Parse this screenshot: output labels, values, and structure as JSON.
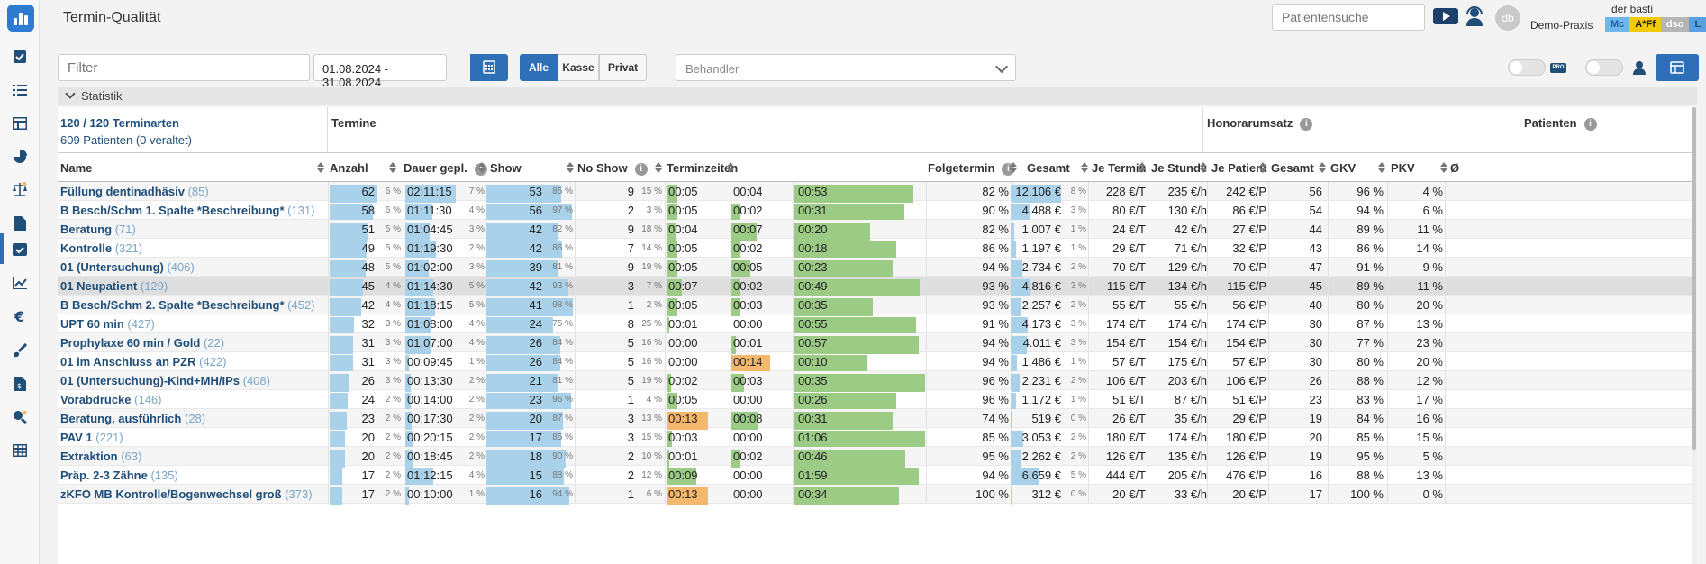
{
  "app": {
    "title": "Termin-Qualität"
  },
  "header": {
    "search_placeholder": "Patientensuche",
    "user_name": "der basti",
    "practice": "Demo-Praxis",
    "avatar": "db",
    "badges": [
      {
        "label": "Mc",
        "color": "#1f5fa8",
        "bg": "#6eb7ea"
      },
      {
        "label": "A*Ff",
        "color": "#1a1a1a",
        "bg": "#f2cb05"
      },
      {
        "label": "dso",
        "color": "#ffffff",
        "bg": "#b5b5b5"
      },
      {
        "label": "L",
        "color": "#1f4e79",
        "bg": "#5aa1e3"
      }
    ]
  },
  "toolbar": {
    "filter_placeholder": "Filter",
    "date_range": "01.08.2024 - 31.08.2024",
    "segments": [
      "Alle",
      "Kasse",
      "Privat"
    ],
    "active_segment": "Alle",
    "behandler_placeholder": "Behandler",
    "toggle1_label": "PRO"
  },
  "statistik": {
    "label": "Statistik"
  },
  "groups": {
    "summary_line1": "120 / 120 Terminarten",
    "summary_line2": "609 Patienten (0 veraltet)",
    "termine": "Termine",
    "honorar": "Honorarumsatz",
    "patienten": "Patienten"
  },
  "columns": {
    "name": "Name",
    "anzahl": "Anzahl",
    "dauer": "Dauer gepl.",
    "show": "Show",
    "noshow": "No Show",
    "terminzeiten": "Terminzeiten",
    "folgetermin": "Folgetermin",
    "gesamt": "Gesamt",
    "je_termin": "Je Termin",
    "je_stunde": "Je Stunde",
    "je_patient": "Je Patient",
    "pat_gesamt": "Gesamt",
    "gkv": "GKV",
    "pkv": "PKV",
    "overflow": "Ø"
  },
  "rows": [
    {
      "name": "Füllung dentinadhäsiv",
      "count": "(85)",
      "anzahl": "62",
      "anzahl_pct": "6 %",
      "dauer": "02:11:15",
      "dauer_pct": "7 %",
      "show": "53",
      "show_pct": "85 %",
      "noshow": "9",
      "noshow_pct": "15 %",
      "t1": "00:05",
      "t2": "00:04",
      "t3": "00:53",
      "folge": "82 %",
      "gesamt": "12.106 €",
      "gesamt_pct": "8 %",
      "je_termin": "228 €/T",
      "je_stunde": "235 €/h",
      "je_patient": "242 €/P",
      "pat": "56",
      "gkv": "96 %",
      "pkv": "4 %",
      "t1_fill": 0.27,
      "t2_fill": 0,
      "t3_fill": 0.91,
      "t1_c": "g",
      "t2_c": "g",
      "t3_c": "g",
      "anz_fill": 1.0,
      "dauer_fill": 1.0,
      "show_fill": 0.85,
      "gesamt_fill": 1.0
    },
    {
      "name": "B Besch/Schm 1. Spalte *Beschreibung*",
      "count": "(131)",
      "anzahl": "58",
      "anzahl_pct": "6 %",
      "dauer": "01:11:30",
      "dauer_pct": "4 %",
      "show": "56",
      "show_pct": "97 %",
      "noshow": "2",
      "noshow_pct": "3 %",
      "t1": "00:05",
      "t2": "00:02",
      "t3": "00:31",
      "folge": "90 %",
      "gesamt": "4.488 €",
      "gesamt_pct": "3 %",
      "je_termin": "80 €/T",
      "je_stunde": "130 €/h",
      "je_patient": "86 €/P",
      "pat": "54",
      "gkv": "94 %",
      "pkv": "6 %",
      "t1_fill": 0.27,
      "t2_fill": 0.2,
      "t3_fill": 0.84,
      "t1_c": "g",
      "t2_c": "g",
      "t3_c": "g",
      "anz_fill": 0.93,
      "dauer_fill": 0.54,
      "show_fill": 0.97,
      "gesamt_fill": 0.37
    },
    {
      "name": "Beratung",
      "count": "(71)",
      "anzahl": "51",
      "anzahl_pct": "5 %",
      "dauer": "01:04:45",
      "dauer_pct": "3 %",
      "show": "42",
      "show_pct": "82 %",
      "noshow": "9",
      "noshow_pct": "18 %",
      "t1": "00:04",
      "t2": "00:07",
      "t3": "00:20",
      "folge": "82 %",
      "gesamt": "1.007 €",
      "gesamt_pct": "1 %",
      "je_termin": "24 €/T",
      "je_stunde": "42 €/h",
      "je_patient": "27 €/P",
      "pat": "44",
      "gkv": "89 %",
      "pkv": "11 %",
      "t1_fill": 0.22,
      "t2_fill": 0.53,
      "t3_fill": 0.58,
      "t1_c": "g",
      "t2_c": "g",
      "t3_c": "g",
      "anz_fill": 0.82,
      "dauer_fill": 0.49,
      "show_fill": 0.82,
      "gesamt_fill": 0.08
    },
    {
      "name": "Kontrolle",
      "count": "(321)",
      "anzahl": "49",
      "anzahl_pct": "5 %",
      "dauer": "01:19:30",
      "dauer_pct": "2 %",
      "show": "42",
      "show_pct": "86 %",
      "noshow": "7",
      "noshow_pct": "14 %",
      "t1": "00:05",
      "t2": "00:02",
      "t3": "00:18",
      "folge": "86 %",
      "gesamt": "1.197 €",
      "gesamt_pct": "1 %",
      "je_termin": "29 €/T",
      "je_stunde": "71 €/h",
      "je_patient": "32 €/P",
      "pat": "43",
      "gkv": "86 %",
      "pkv": "14 %",
      "t1_fill": 0.27,
      "t2_fill": 0.2,
      "t3_fill": 0.78,
      "t1_c": "g",
      "t2_c": "g",
      "t3_c": "g",
      "anz_fill": 0.79,
      "dauer_fill": 0.6,
      "show_fill": 0.86,
      "gesamt_fill": 0.1
    },
    {
      "name": "01 (Untersuchung)",
      "count": "(406)",
      "anzahl": "48",
      "anzahl_pct": "5 %",
      "dauer": "01:02:00",
      "dauer_pct": "3 %",
      "show": "39",
      "show_pct": "81 %",
      "noshow": "9",
      "noshow_pct": "19 %",
      "t1": "00:05",
      "t2": "00:05",
      "t3": "00:23",
      "folge": "94 %",
      "gesamt": "2.734 €",
      "gesamt_pct": "2 %",
      "je_termin": "70 €/T",
      "je_stunde": "129 €/h",
      "je_patient": "70 €/P",
      "pat": "47",
      "gkv": "91 %",
      "pkv": "9 %",
      "t1_fill": 0.27,
      "t2_fill": 0.4,
      "t3_fill": 0.75,
      "t1_c": "g",
      "t2_c": "g",
      "t3_c": "g",
      "anz_fill": 0.77,
      "dauer_fill": 0.47,
      "show_fill": 0.81,
      "gesamt_fill": 0.23
    },
    {
      "name": "01 Neupatient",
      "count": "(129)",
      "anzahl": "45",
      "anzahl_pct": "4 %",
      "dauer": "01:14:30",
      "dauer_pct": "5 %",
      "show": "42",
      "show_pct": "93 %",
      "noshow": "3",
      "noshow_pct": "7 %",
      "t1": "00:07",
      "t2": "00:02",
      "t3": "00:49",
      "folge": "93 %",
      "gesamt": "4.816 €",
      "gesamt_pct": "3 %",
      "je_termin": "115 €/T",
      "je_stunde": "134 €/h",
      "je_patient": "115 €/P",
      "pat": "45",
      "gkv": "89 %",
      "pkv": "11 %",
      "t1_fill": 0.38,
      "t2_fill": 0.2,
      "t3_fill": 0.96,
      "t1_c": "g",
      "t2_c": "g",
      "t3_c": "g",
      "anz_fill": 0.72,
      "dauer_fill": 0.56,
      "show_fill": 0.93,
      "gesamt_fill": 0.4,
      "hl": true
    },
    {
      "name": "B Besch/Schm 2. Spalte *Beschreibung*",
      "count": "(452)",
      "anzahl": "42",
      "anzahl_pct": "4 %",
      "dauer": "01:18:15",
      "dauer_pct": "5 %",
      "show": "41",
      "show_pct": "98 %",
      "noshow": "1",
      "noshow_pct": "2 %",
      "t1": "00:05",
      "t2": "00:03",
      "t3": "00:35",
      "folge": "93 %",
      "gesamt": "2.257 €",
      "gesamt_pct": "2 %",
      "je_termin": "55 €/T",
      "je_stunde": "55 €/h",
      "je_patient": "56 €/P",
      "pat": "40",
      "gkv": "80 %",
      "pkv": "20 %",
      "t1_fill": 0.27,
      "t2_fill": 0.2,
      "t3_fill": 0.6,
      "t1_c": "g",
      "t2_c": "g",
      "t3_c": "g",
      "anz_fill": 0.68,
      "dauer_fill": 0.59,
      "show_fill": 0.98,
      "gesamt_fill": 0.19
    },
    {
      "name": "UPT 60 min",
      "count": "(427)",
      "anzahl": "32",
      "anzahl_pct": "3 %",
      "dauer": "01:08:00",
      "dauer_pct": "4 %",
      "show": "24",
      "show_pct": "75 %",
      "noshow": "8",
      "noshow_pct": "25 %",
      "t1": "00:01",
      "t2": "00:00",
      "t3": "00:55",
      "folge": "91 %",
      "gesamt": "4.173 €",
      "gesamt_pct": "3 %",
      "je_termin": "174 €/T",
      "je_stunde": "174 €/h",
      "je_patient": "174 €/P",
      "pat": "30",
      "gkv": "87 %",
      "pkv": "13 %",
      "t1_fill": 0.07,
      "t2_fill": 0,
      "t3_fill": 0.93,
      "t1_c": "g",
      "t2_c": "g",
      "t3_c": "g",
      "anz_fill": 0.52,
      "dauer_fill": 0.52,
      "show_fill": 0.75,
      "gesamt_fill": 0.34
    },
    {
      "name": "Prophylaxe 60 min / Gold",
      "count": "(22)",
      "anzahl": "31",
      "anzahl_pct": "3 %",
      "dauer": "01:07:00",
      "dauer_pct": "4 %",
      "show": "26",
      "show_pct": "84 %",
      "noshow": "5",
      "noshow_pct": "16 %",
      "t1": "00:00",
      "t2": "00:01",
      "t3": "00:57",
      "folge": "94 %",
      "gesamt": "4.011 €",
      "gesamt_pct": "3 %",
      "je_termin": "154 €/T",
      "je_stunde": "154 €/h",
      "je_patient": "154 €/P",
      "pat": "30",
      "gkv": "77 %",
      "pkv": "23 %",
      "t1_fill": 0.02,
      "t2_fill": 0.1,
      "t3_fill": 0.95,
      "t1_c": "g",
      "t2_c": "g",
      "t3_c": "g",
      "anz_fill": 0.5,
      "dauer_fill": 0.51,
      "show_fill": 0.84,
      "gesamt_fill": 0.33
    },
    {
      "name": "01 im Anschluss an PZR",
      "count": "(422)",
      "anzahl": "31",
      "anzahl_pct": "3 %",
      "dauer": "00:09:45",
      "dauer_pct": "1 %",
      "show": "26",
      "show_pct": "84 %",
      "noshow": "5",
      "noshow_pct": "16 %",
      "t1": "00:00",
      "t2": "00:14",
      "t3": "00:10",
      "folge": "94 %",
      "gesamt": "1.486 €",
      "gesamt_pct": "1 %",
      "je_termin": "57 €/T",
      "je_stunde": "175 €/h",
      "je_patient": "57 €/P",
      "pat": "30",
      "gkv": "80 %",
      "pkv": "20 %",
      "t1_fill": 0.02,
      "t2_fill": 0.82,
      "t3_fill": 0.55,
      "t1_c": "g",
      "t2_c": "o",
      "t3_c": "g",
      "anz_fill": 0.5,
      "dauer_fill": 0.07,
      "show_fill": 0.84,
      "gesamt_fill": 0.12
    },
    {
      "name": "01 (Untersuchung)-Kind+MH/IPs",
      "count": "(408)",
      "anzahl": "26",
      "anzahl_pct": "3 %",
      "dauer": "00:13:30",
      "dauer_pct": "2 %",
      "show": "21",
      "show_pct": "81 %",
      "noshow": "5",
      "noshow_pct": "19 %",
      "t1": "00:02",
      "t2": "00:03",
      "t3": "00:35",
      "folge": "96 %",
      "gesamt": "2.231 €",
      "gesamt_pct": "2 %",
      "je_termin": "106 €/T",
      "je_stunde": "203 €/h",
      "je_patient": "106 €/P",
      "pat": "26",
      "gkv": "88 %",
      "pkv": "12 %",
      "t1_fill": 0.1,
      "t2_fill": 0.27,
      "t3_fill": 1.0,
      "t1_c": "g",
      "t2_c": "g",
      "t3_c": "g",
      "anz_fill": 0.42,
      "dauer_fill": 0.1,
      "show_fill": 0.81,
      "gesamt_fill": 0.18
    },
    {
      "name": "Vorabdrücke",
      "count": "(146)",
      "anzahl": "24",
      "anzahl_pct": "2 %",
      "dauer": "00:14:00",
      "dauer_pct": "2 %",
      "show": "23",
      "show_pct": "96 %",
      "noshow": "1",
      "noshow_pct": "4 %",
      "t1": "00:05",
      "t2": "00:00",
      "t3": "00:26",
      "folge": "96 %",
      "gesamt": "1.172 €",
      "gesamt_pct": "1 %",
      "je_termin": "51 €/T",
      "je_stunde": "87 €/h",
      "je_patient": "51 €/P",
      "pat": "23",
      "gkv": "83 %",
      "pkv": "17 %",
      "t1_fill": 0.27,
      "t2_fill": 0,
      "t3_fill": 0.78,
      "t1_c": "g",
      "t2_c": "g",
      "t3_c": "g",
      "anz_fill": 0.39,
      "dauer_fill": 0.11,
      "show_fill": 0.96,
      "gesamt_fill": 0.1
    },
    {
      "name": "Beratung, ausführlich",
      "count": "(28)",
      "anzahl": "23",
      "anzahl_pct": "2 %",
      "dauer": "00:17:30",
      "dauer_pct": "2 %",
      "show": "20",
      "show_pct": "87 %",
      "noshow": "3",
      "noshow_pct": "13 %",
      "t1": "00:13",
      "t2": "00:08",
      "t3": "00:31",
      "folge": "74 %",
      "gesamt": "519 €",
      "gesamt_pct": "0 %",
      "je_termin": "26 €/T",
      "je_stunde": "35 €/h",
      "je_patient": "29 €/P",
      "pat": "19",
      "gkv": "84 %",
      "pkv": "16 %",
      "t1_fill": 1.0,
      "t2_fill": 0.55,
      "t3_fill": 0.75,
      "t1_c": "o",
      "t2_c": "g",
      "t3_c": "g",
      "anz_fill": 0.37,
      "dauer_fill": 0.13,
      "show_fill": 0.87,
      "gesamt_fill": 0.04
    },
    {
      "name": "PAV 1",
      "count": "(221)",
      "anzahl": "20",
      "anzahl_pct": "2 %",
      "dauer": "00:20:15",
      "dauer_pct": "2 %",
      "show": "17",
      "show_pct": "85 %",
      "noshow": "3",
      "noshow_pct": "15 %",
      "t1": "00:03",
      "t2": "00:00",
      "t3": "01:06",
      "folge": "85 %",
      "gesamt": "3.053 €",
      "gesamt_pct": "2 %",
      "je_termin": "180 €/T",
      "je_stunde": "174 €/h",
      "je_patient": "180 €/P",
      "pat": "20",
      "gkv": "85 %",
      "pkv": "15 %",
      "t1_fill": 0.14,
      "t2_fill": 0,
      "t3_fill": 1.0,
      "t1_c": "g",
      "t2_c": "g",
      "t3_c": "g",
      "anz_fill": 0.32,
      "dauer_fill": 0.15,
      "show_fill": 0.85,
      "gesamt_fill": 0.25
    },
    {
      "name": "Extraktion",
      "count": "(63)",
      "anzahl": "20",
      "anzahl_pct": "2 %",
      "dauer": "00:18:45",
      "dauer_pct": "2 %",
      "show": "18",
      "show_pct": "90 %",
      "noshow": "2",
      "noshow_pct": "10 %",
      "t1": "00:01",
      "t2": "00:02",
      "t3": "00:46",
      "folge": "95 %",
      "gesamt": "2.262 €",
      "gesamt_pct": "2 %",
      "je_termin": "126 €/T",
      "je_stunde": "135 €/h",
      "je_patient": "126 €/P",
      "pat": "19",
      "gkv": "95 %",
      "pkv": "5 %",
      "t1_fill": 0.07,
      "t2_fill": 0.2,
      "t3_fill": 0.85,
      "t1_c": "g",
      "t2_c": "g",
      "t3_c": "g",
      "anz_fill": 0.32,
      "dauer_fill": 0.14,
      "show_fill": 0.9,
      "gesamt_fill": 0.19
    },
    {
      "name": "Präp. 2-3 Zähne",
      "count": "(135)",
      "anzahl": "17",
      "anzahl_pct": "2 %",
      "dauer": "01:12:15",
      "dauer_pct": "4 %",
      "show": "15",
      "show_pct": "88 %",
      "noshow": "2",
      "noshow_pct": "12 %",
      "t1": "00:09",
      "t2": "00:00",
      "t3": "01:59",
      "folge": "94 %",
      "gesamt": "6.659 €",
      "gesamt_pct": "5 %",
      "je_termin": "444 €/T",
      "je_stunde": "205 €/h",
      "je_patient": "476 €/P",
      "pat": "16",
      "gkv": "88 %",
      "pkv": "13 %",
      "t1_fill": 0.72,
      "t2_fill": 0,
      "t3_fill": 0.95,
      "t1_c": "g",
      "t2_c": "g",
      "t3_c": "g",
      "anz_fill": 0.27,
      "dauer_fill": 0.55,
      "show_fill": 0.88,
      "gesamt_fill": 0.55
    },
    {
      "name": "zKFO MB Kontrolle/Bogenwechsel groß",
      "count": "(373)",
      "anzahl": "17",
      "anzahl_pct": "2 %",
      "dauer": "00:10:00",
      "dauer_pct": "1 %",
      "show": "16",
      "show_pct": "94 %",
      "noshow": "1",
      "noshow_pct": "6 %",
      "t1": "00:13",
      "t2": "00:00",
      "t3": "00:34",
      "folge": "100 %",
      "gesamt": "312 €",
      "gesamt_pct": "0 %",
      "je_termin": "20 €/T",
      "je_stunde": "33 €/h",
      "je_patient": "20 €/P",
      "pat": "17",
      "gkv": "100 %",
      "pkv": "0 %",
      "t1_fill": 1.0,
      "t2_fill": 0,
      "t3_fill": 0.8,
      "t1_c": "o",
      "t2_c": "g",
      "t3_c": "g",
      "anz_fill": 0.27,
      "dauer_fill": 0.08,
      "show_fill": 0.94,
      "gesamt_fill": 0.03
    }
  ]
}
